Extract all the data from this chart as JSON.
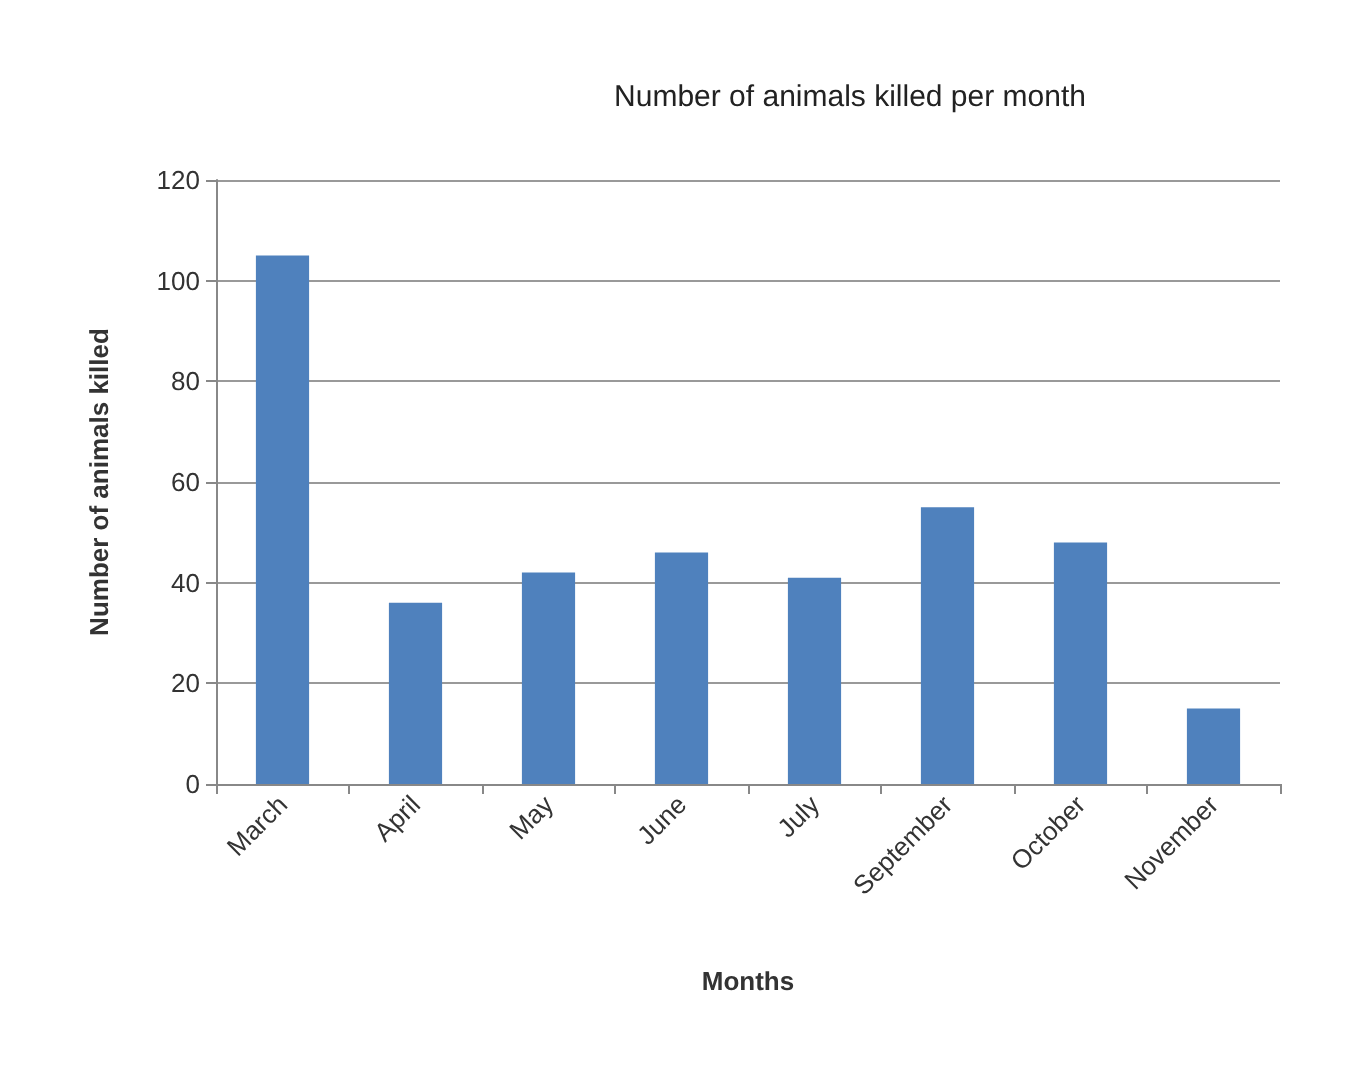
{
  "chart_data": {
    "type": "bar",
    "title": "Number of animals killed per month",
    "xlabel": "Months",
    "ylabel": "Number of animals killed",
    "categories": [
      "March",
      "April",
      "May",
      "June",
      "July",
      "September",
      "October",
      "November"
    ],
    "values": [
      105,
      36,
      42,
      46,
      41,
      55,
      48,
      15
    ],
    "color": "#4f81bd",
    "ylim": [
      0,
      120
    ],
    "yticks": [
      0,
      20,
      40,
      60,
      80,
      100,
      120
    ],
    "grid": "y"
  }
}
